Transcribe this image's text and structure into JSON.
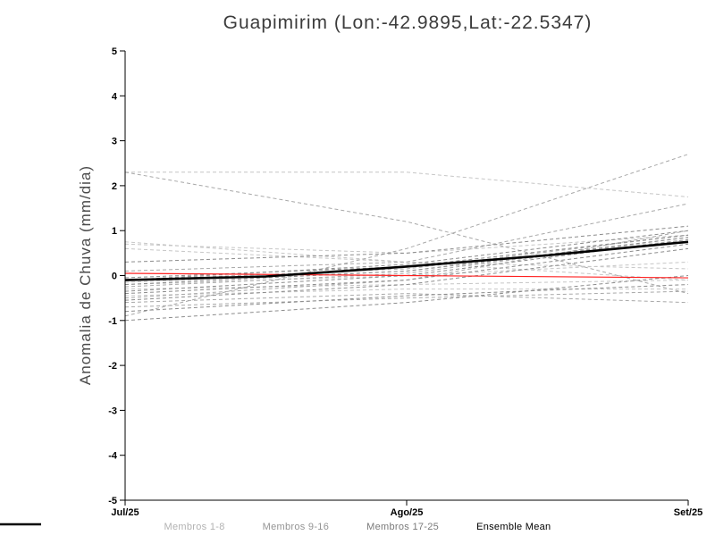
{
  "chart_data": {
    "type": "line",
    "title": "Guapimirim (Lon:-42.9895,Lat:-22.5347)",
    "ylabel": "Anomalia de Chuva (mm/dia)",
    "xlim": [
      0,
      2
    ],
    "ylim": [
      -5,
      5
    ],
    "y_ticks": [
      -5,
      -4,
      -3,
      -2,
      -1,
      0,
      1,
      2,
      3,
      4,
      5
    ],
    "x_ticks": [
      {
        "x": 0,
        "label": "Jul/25"
      },
      {
        "x": 1,
        "label": "Ago/25"
      },
      {
        "x": 2,
        "label": "Set/25"
      }
    ],
    "member_x": [
      0,
      1,
      2
    ],
    "members": [
      {
        "group": "1-8",
        "values": [
          2.3,
          2.3,
          1.75
        ]
      },
      {
        "group": "1-8",
        "values": [
          0.75,
          0.3,
          -0.1
        ]
      },
      {
        "group": "1-8",
        "values": [
          0.7,
          0.5,
          0.9
        ]
      },
      {
        "group": "1-8",
        "values": [
          0.6,
          0.3,
          0.15
        ]
      },
      {
        "group": "1-8",
        "values": [
          -0.15,
          0.1,
          0.8
        ]
      },
      {
        "group": "1-8",
        "values": [
          -0.2,
          0.0,
          0.3
        ]
      },
      {
        "group": "1-8",
        "values": [
          -0.3,
          -0.2,
          -0.1
        ]
      },
      {
        "group": "1-8",
        "values": [
          -0.45,
          -0.3,
          -0.3
        ]
      },
      {
        "group": "9-16",
        "values": [
          -0.9,
          0.6,
          2.7
        ]
      },
      {
        "group": "9-16",
        "values": [
          2.3,
          1.2,
          -0.4
        ]
      },
      {
        "group": "9-16",
        "values": [
          -0.5,
          -0.1,
          1.0
        ]
      },
      {
        "group": "9-16",
        "values": [
          -0.6,
          -0.4,
          -0.6
        ]
      },
      {
        "group": "9-16",
        "values": [
          -0.1,
          0.15,
          0.9
        ]
      },
      {
        "group": "9-16",
        "values": [
          -0.25,
          0.05,
          0.85
        ]
      },
      {
        "group": "9-16",
        "values": [
          -0.7,
          -0.5,
          -0.35
        ]
      },
      {
        "group": "9-16",
        "values": [
          0.1,
          0.3,
          1.6
        ]
      },
      {
        "group": "17-25",
        "values": [
          -0.05,
          0.2,
          0.9
        ]
      },
      {
        "group": "17-25",
        "values": [
          -0.1,
          0.25,
          1.0
        ]
      },
      {
        "group": "17-25",
        "values": [
          -0.2,
          0.1,
          0.85
        ]
      },
      {
        "group": "17-25",
        "values": [
          -0.35,
          0.0,
          0.8
        ]
      },
      {
        "group": "17-25",
        "values": [
          -0.4,
          -0.1,
          0.7
        ]
      },
      {
        "group": "17-25",
        "values": [
          -0.55,
          -0.2,
          0.6
        ]
      },
      {
        "group": "17-25",
        "values": [
          -0.8,
          -0.45,
          -0.2
        ]
      },
      {
        "group": "17-25",
        "values": [
          0.3,
          0.5,
          1.1
        ]
      },
      {
        "group": "17-25",
        "values": [
          -1.0,
          -0.6,
          0.0
        ]
      }
    ],
    "group_colors": {
      "1-8": "#c6c6c6",
      "9-16": "#a8a8a8",
      "17-25": "#8c8c8c"
    },
    "reference_line": {
      "name": "zero-anomaly-line",
      "color": "#ff2020",
      "x": [
        0,
        1,
        2
      ],
      "values": [
        0.05,
        0.0,
        -0.05
      ]
    },
    "ensemble_mean": {
      "name": "Ensemble Mean",
      "color": "#000000",
      "x": [
        0,
        0.5,
        1,
        1.5,
        2
      ],
      "values": [
        -0.1,
        -0.02,
        0.2,
        0.45,
        0.75
      ]
    },
    "axis_color": "#000000",
    "legend": [
      {
        "label": "Membros 1-8",
        "style": "dashed",
        "color": "#c6c6c6",
        "text_color": "#b2b2b2"
      },
      {
        "label": "Membros 9-16",
        "style": "dashed",
        "color": "#a8a8a8",
        "text_color": "#949494"
      },
      {
        "label": "Membros 17-25",
        "style": "dashed",
        "color": "#8c8c8c",
        "text_color": "#7a7a7a"
      },
      {
        "label": "Ensemble Mean",
        "style": "solid",
        "color": "#000000",
        "text_color": "#000000"
      }
    ]
  }
}
